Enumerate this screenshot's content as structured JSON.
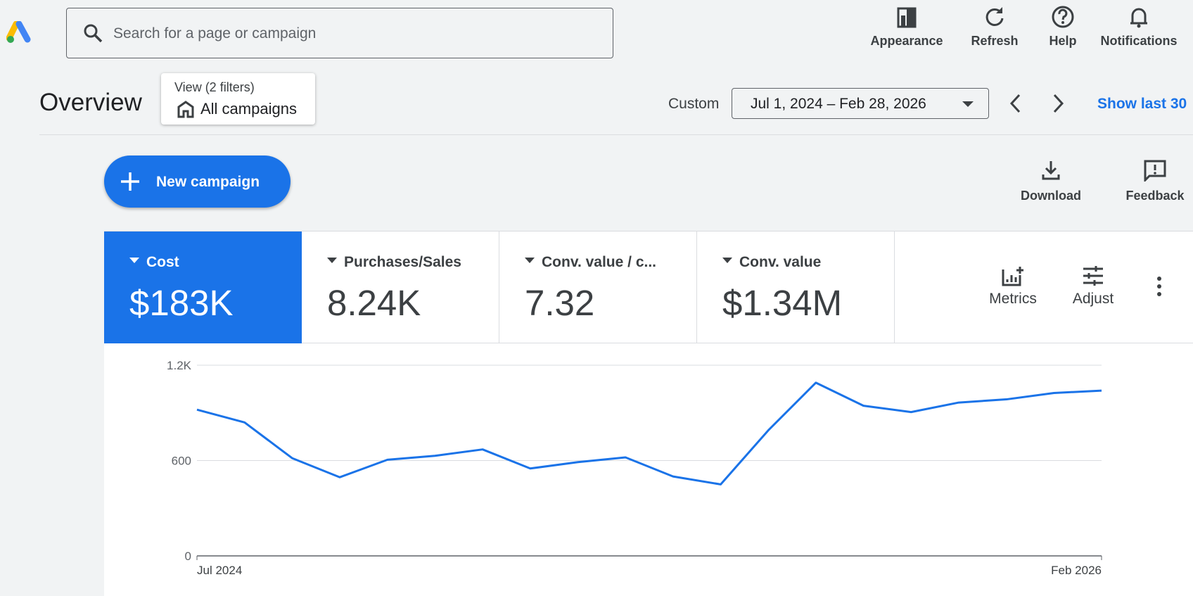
{
  "header": {
    "search_placeholder": "Search for a page or campaign",
    "actions": [
      "Appearance",
      "Refresh",
      "Help",
      "Notifications"
    ]
  },
  "overview": {
    "title": "Overview",
    "view_label": "View (2 filters)",
    "view_value": "All campaigns",
    "date_mode": "Custom",
    "date_range": "Jul 1, 2024 – Feb 28, 2026",
    "show_last": "Show last 30"
  },
  "toolbar": {
    "new_campaign": "New campaign",
    "actions": [
      "Download",
      "Feedback"
    ]
  },
  "scorecards": [
    {
      "label": "Cost",
      "value": "$183K"
    },
    {
      "label": "Purchases/Sales",
      "value": "8.24K"
    },
    {
      "label": "Conv. value / c...",
      "value": "7.32"
    },
    {
      "label": "Conv. value",
      "value": "$1.34M"
    }
  ],
  "scorecard_actions": [
    "Metrics",
    "Adjust"
  ],
  "chart_data": {
    "type": "line",
    "categories": [
      "Jul 2024",
      null,
      null,
      null,
      null,
      null,
      null,
      null,
      null,
      null,
      null,
      null,
      null,
      null,
      null,
      null,
      null,
      null,
      null,
      "Feb 2026"
    ],
    "values": [
      920,
      840,
      615,
      495,
      605,
      630,
      670,
      550,
      590,
      620,
      500,
      450,
      790,
      1090,
      945,
      905,
      965,
      985,
      1025,
      1040
    ],
    "color": "#1a73e8",
    "ylim": [
      0,
      1200
    ],
    "yticks": [
      0,
      600,
      {
        "value": 1200,
        "label": "1.2K"
      }
    ],
    "grid": true
  }
}
